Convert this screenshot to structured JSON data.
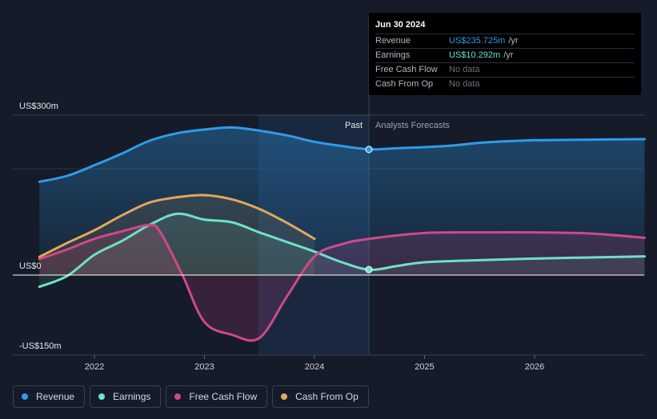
{
  "chart_data": {
    "type": "line",
    "y_labels": {
      "top": "US$300m",
      "zero": "US$0",
      "bottom": "-US$150m"
    },
    "ylim": [
      -150,
      300
    ],
    "x_ticks": [
      "2022",
      "2023",
      "2024",
      "2025",
      "2026"
    ],
    "divider_labels": {
      "past": "Past",
      "forecast": "Analysts Forecasts"
    },
    "series": [
      {
        "name": "Revenue",
        "color": "#2f9be8",
        "points": [
          [
            2021.5,
            175
          ],
          [
            2021.75,
            186
          ],
          [
            2022.0,
            206
          ],
          [
            2022.25,
            228
          ],
          [
            2022.5,
            252
          ],
          [
            2022.75,
            266
          ],
          [
            2023.0,
            273
          ],
          [
            2023.25,
            277
          ],
          [
            2023.5,
            271
          ],
          [
            2023.75,
            262
          ],
          [
            2024.0,
            250
          ],
          [
            2024.25,
            242
          ],
          [
            2024.5,
            236
          ],
          [
            2024.75,
            238
          ],
          [
            2025.0,
            240
          ],
          [
            2025.25,
            243
          ],
          [
            2025.5,
            248
          ],
          [
            2025.75,
            251
          ],
          [
            2026.0,
            253
          ],
          [
            2026.5,
            254
          ],
          [
            2027.0,
            255
          ]
        ]
      },
      {
        "name": "Earnings",
        "color": "#6de2c6",
        "points": [
          [
            2021.5,
            -22
          ],
          [
            2021.75,
            -2
          ],
          [
            2022.0,
            38
          ],
          [
            2022.25,
            64
          ],
          [
            2022.5,
            94
          ],
          [
            2022.75,
            115
          ],
          [
            2023.0,
            104
          ],
          [
            2023.25,
            99
          ],
          [
            2023.5,
            80
          ],
          [
            2023.75,
            62
          ],
          [
            2024.0,
            44
          ],
          [
            2024.25,
            24
          ],
          [
            2024.5,
            10
          ],
          [
            2024.75,
            17
          ],
          [
            2025.0,
            24
          ],
          [
            2025.5,
            28
          ],
          [
            2026.0,
            31
          ],
          [
            2026.5,
            33
          ],
          [
            2027.0,
            35
          ]
        ]
      },
      {
        "name": "Free Cash Flow",
        "color": "#d1488b",
        "points": [
          [
            2021.5,
            30
          ],
          [
            2021.75,
            48
          ],
          [
            2022.0,
            68
          ],
          [
            2022.25,
            82
          ],
          [
            2022.5,
            94
          ],
          [
            2022.6,
            80
          ],
          [
            2022.8,
            0
          ],
          [
            2023.0,
            -88
          ],
          [
            2023.25,
            -112
          ],
          [
            2023.5,
            -118
          ],
          [
            2023.75,
            -40
          ],
          [
            2024.0,
            35
          ],
          [
            2024.25,
            58
          ],
          [
            2024.5,
            68
          ],
          [
            2025.0,
            79
          ],
          [
            2025.5,
            80
          ],
          [
            2026.0,
            80
          ],
          [
            2026.5,
            78
          ],
          [
            2027.0,
            70
          ]
        ]
      },
      {
        "name": "Cash From Op",
        "color": "#e3a75a",
        "points": [
          [
            2021.5,
            34
          ],
          [
            2021.75,
            60
          ],
          [
            2022.0,
            84
          ],
          [
            2022.25,
            112
          ],
          [
            2022.5,
            136
          ],
          [
            2022.75,
            146
          ],
          [
            2023.0,
            150
          ],
          [
            2023.25,
            142
          ],
          [
            2023.5,
            124
          ],
          [
            2023.75,
            98
          ],
          [
            2024.0,
            68
          ]
        ]
      }
    ]
  },
  "tooltip": {
    "date": "Jun 30 2024",
    "rows": [
      {
        "label": "Revenue",
        "value": "US$235.725m",
        "unit": "/yr",
        "color": "#2f9be8"
      },
      {
        "label": "Earnings",
        "value": "US$10.292m",
        "unit": "/yr",
        "color": "#6de2c6"
      },
      {
        "label": "Free Cash Flow",
        "value": "No data",
        "unit": "",
        "color": "#6b717a"
      },
      {
        "label": "Cash From Op",
        "value": "No data",
        "unit": "",
        "color": "#6b717a"
      }
    ]
  },
  "legend": [
    {
      "label": "Revenue",
      "color": "#2f9be8"
    },
    {
      "label": "Earnings",
      "color": "#6de2c6"
    },
    {
      "label": "Free Cash Flow",
      "color": "#d1488b"
    },
    {
      "label": "Cash From Op",
      "color": "#e3a75a"
    }
  ]
}
